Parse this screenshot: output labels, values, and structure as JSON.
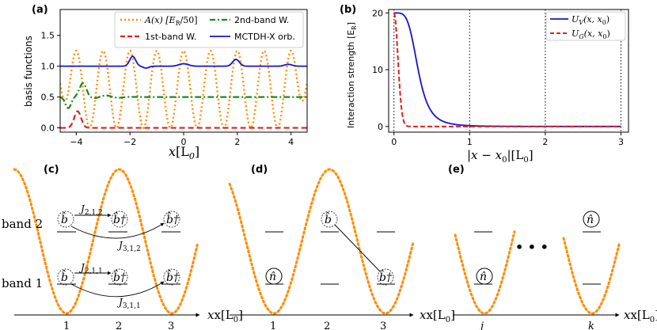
{
  "colors": {
    "orange": "#ff8c00",
    "red": "#e0201b",
    "green": "#1a8a1a",
    "blue": "#1414d2",
    "grey": "#aaaaaa"
  },
  "chart_data": [
    {
      "type": "line",
      "panel": "(a)",
      "xlabel": "x[L0]",
      "ylabel": "basis functions",
      "xlim": [
        -4.6,
        4.6
      ],
      "ylim": [
        -0.07,
        1.92
      ],
      "xticks": [
        "-4",
        "-2",
        "0",
        "2",
        "4"
      ],
      "yticks": [
        "0.0",
        "0.5",
        "1.0",
        "1.5"
      ],
      "series": [
        {
          "name": "A(x) [E_R/50]",
          "style": "dotted",
          "color": "orange"
        },
        {
          "name": "1st-band W.",
          "style": "dashed",
          "color": "red"
        },
        {
          "name": "2nd-band W.",
          "style": "dashdot",
          "color": "green"
        },
        {
          "name": "MCTDH-X orb.",
          "style": "solid",
          "color": "blue"
        }
      ]
    },
    {
      "type": "line",
      "panel": "(b)",
      "xlabel": "|x - x0|[L0]",
      "ylabel": "Interaction strength [E_R]",
      "xlim": [
        -0.07,
        3.1
      ],
      "ylim": [
        -1,
        20.6
      ],
      "xticks": [
        "0",
        "1",
        "2",
        "3"
      ],
      "yticks": [
        "0",
        "10",
        "20"
      ],
      "series": [
        {
          "name": "U_V(x,x0)",
          "style": "solid",
          "color": "blue"
        },
        {
          "name": "U_G(x,x0)",
          "style": "dashed",
          "color": "red"
        }
      ]
    }
  ],
  "panel_a": {
    "label": "(a)",
    "xlabel_main": "x",
    "xlabel_unit": "[L",
    "xlabel_sub": "0",
    "xlabel_close": "]",
    "ylabel": "basis functions",
    "xticks": [
      "−4",
      "−2",
      "0",
      "2",
      "4"
    ],
    "yticks": [
      "0.0",
      "0.5",
      "1.0",
      "1.5"
    ],
    "legend": {
      "A_main": "A(x) [E",
      "A_sub": "R",
      "A_tail": "/50]",
      "second": "2nd-band W.",
      "first": "1st-band W.",
      "mctdh": "MCTDH-X orb."
    }
  },
  "panel_b": {
    "label": "(b)",
    "ylabel": "Interaction strength [E",
    "ylabel_sub": "R",
    "ylabel_close": "]",
    "xticks": [
      "0",
      "1",
      "2",
      "3"
    ],
    "yticks": [
      "0",
      "10",
      "20"
    ],
    "xlabel": "|x − x",
    "xlabel_sub": "0",
    "xlabel_tail": "|[L",
    "xlabel_sub2": "0",
    "xlabel_close": "]",
    "legend": {
      "v_main": "U",
      "v_sub": "V",
      "v_args": "(x, x",
      "v_sub2": "0",
      "v_close": ")",
      "g_main": "U",
      "g_sub": "G",
      "g_args": "(x, x",
      "g_sub2": "0",
      "g_close": ")"
    }
  },
  "panel_c": {
    "label": "(c)",
    "band2": "band 2",
    "band1": "band 1",
    "sites": [
      "1",
      "2",
      "3"
    ],
    "x_axis": "x[L",
    "x_sub": "0",
    "x_close": "]",
    "b_op": "b̂",
    "bdag_op": "b̂†",
    "J212": "J",
    "J212_sub": "2,1,2",
    "J312": "J",
    "J312_sub": "3,1,2",
    "J211": "J",
    "J211_sub": "2,1,1",
    "J311": "J",
    "J311_sub": "3,1,1"
  },
  "panel_d": {
    "label": "(d)",
    "sites": [
      "1",
      "2",
      "3"
    ],
    "x_axis": "x[L",
    "x_sub": "0",
    "x_close": "]",
    "n_op": "n̂",
    "b_op": "b̂",
    "bdag_op": "b̂†"
  },
  "panel_e": {
    "label": "(e)",
    "sites": [
      "j",
      "k"
    ],
    "x_axis": "x[L",
    "x_sub": "0",
    "x_close": "]",
    "n_op": "n̂",
    "ellipsis": "• • •"
  }
}
